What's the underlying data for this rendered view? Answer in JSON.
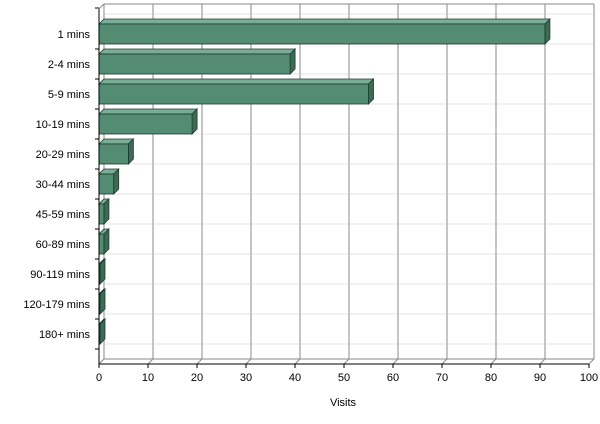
{
  "chart_data": {
    "type": "bar",
    "orientation": "horizontal",
    "style": "3d",
    "categories": [
      "1 mins",
      "2-4 mins",
      "5-9 mins",
      "10-19 mins",
      "20-29 mins",
      "30-44 mins",
      "45-59 mins",
      "60-89 mins",
      "90-119 mins",
      "120-179 mins",
      "180+ mins"
    ],
    "values": [
      91,
      39,
      55,
      19,
      6,
      3,
      1,
      1,
      0,
      0,
      0
    ],
    "xlabel": "Visits",
    "ylabel": "",
    "xlim": [
      0,
      100
    ],
    "xticks": [
      "0",
      "10",
      "20",
      "30",
      "40",
      "50",
      "60",
      "70",
      "80",
      "90",
      "100"
    ],
    "grid": true,
    "legend": "none",
    "colors": {
      "bar_front": "#548c73",
      "bar_top": "#7aad96",
      "bar_side": "#3a6b55",
      "grid": "#888888",
      "axis": "#000000"
    }
  }
}
